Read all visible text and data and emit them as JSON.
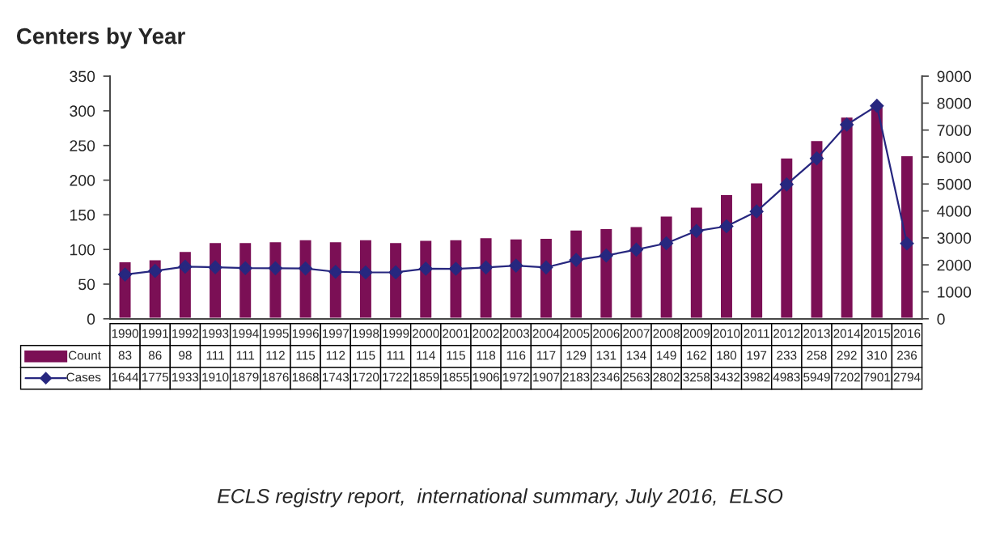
{
  "chart_data": {
    "type": "bar",
    "title": "Centers by Year",
    "categories": [
      "1990",
      "1991",
      "1992",
      "1993",
      "1994",
      "1995",
      "1996",
      "1997",
      "1998",
      "1999",
      "2000",
      "2001",
      "2002",
      "2003",
      "2004",
      "2005",
      "2006",
      "2007",
      "2008",
      "2009",
      "2010",
      "2011",
      "2012",
      "2013",
      "2014",
      "2015",
      "2016"
    ],
    "series": [
      {
        "name": "Count",
        "color": "#7b0f55",
        "values": [
          83,
          86,
          98,
          111,
          111,
          112,
          115,
          112,
          115,
          111,
          114,
          115,
          118,
          116,
          117,
          129,
          131,
          134,
          149,
          162,
          180,
          197,
          233,
          258,
          292,
          310,
          236
        ]
      },
      {
        "name": "Cases",
        "type": "line",
        "axis": "y2",
        "color": "#27277f",
        "marker": "diamond",
        "values": [
          1644,
          1775,
          1933,
          1910,
          1879,
          1876,
          1868,
          1743,
          1720,
          1722,
          1859,
          1855,
          1906,
          1972,
          1907,
          2183,
          2346,
          2563,
          2802,
          3258,
          3432,
          3982,
          4983,
          5949,
          7202,
          7901,
          2794
        ]
      }
    ],
    "ylim": [
      0,
      350
    ],
    "yticks": [
      0,
      50,
      100,
      150,
      200,
      250,
      300,
      350
    ],
    "y2lim": [
      0,
      9000
    ],
    "y2ticks": [
      0,
      1000,
      2000,
      3000,
      4000,
      5000,
      6000,
      7000,
      8000,
      9000
    ],
    "data_labels": true,
    "legend": "bottom",
    "grid": false,
    "annotations": [
      "ECLS registry report,  international summary, July 2016,  ELSO"
    ]
  }
}
